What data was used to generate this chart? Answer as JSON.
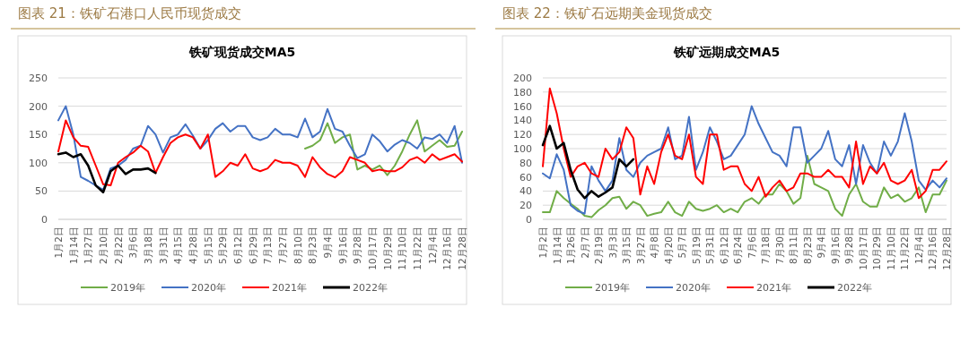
{
  "chart_data": [
    {
      "type": "line",
      "title": "图表 21：铁矿石港口人民币现货成交",
      "subtitle": "铁矿现货成交MA5",
      "grid": "y",
      "legend": "bottom",
      "ylim": [
        0,
        250
      ],
      "yticks": [
        0,
        50,
        100,
        150,
        200,
        250
      ],
      "categories": [
        "1月2日",
        null,
        "1月14日",
        null,
        "1月27日",
        null,
        "2月10日",
        null,
        "2月22日",
        null,
        "3月6日",
        null,
        "3月18日",
        null,
        "3月31日",
        null,
        "4月15日",
        null,
        "4月28日",
        null,
        "5月15日",
        null,
        "5月29日",
        null,
        "6月12日",
        null,
        "6月29日",
        null,
        "7月13日",
        null,
        "7月27日",
        null,
        "8月10日",
        null,
        "8月23日",
        null,
        "9月4日",
        null,
        "9月16日",
        null,
        "9月28日",
        null,
        "10月17日",
        null,
        "10月29日",
        null,
        "11月10日",
        null,
        "11月22日",
        null,
        "12月4日",
        null,
        "12月16日",
        null,
        "12月28日"
      ],
      "series": [
        {
          "name": "2019年",
          "color": "#70ad47",
          "values": [
            null,
            null,
            null,
            null,
            null,
            null,
            null,
            null,
            null,
            null,
            null,
            null,
            null,
            null,
            null,
            null,
            null,
            null,
            null,
            null,
            null,
            null,
            null,
            null,
            null,
            null,
            null,
            null,
            null,
            null,
            null,
            null,
            null,
            125,
            130,
            140,
            170,
            135,
            145,
            150,
            88,
            95,
            88,
            95,
            78,
            95,
            120,
            150,
            175,
            120,
            130,
            140,
            128,
            130,
            155
          ]
        },
        {
          "name": "2020年",
          "color": "#4472c4",
          "values": [
            175,
            200,
            150,
            75,
            68,
            60,
            52,
            90,
            95,
            105,
            125,
            130,
            165,
            150,
            118,
            145,
            150,
            168,
            148,
            125,
            140,
            160,
            170,
            155,
            165,
            165,
            145,
            140,
            145,
            160,
            150,
            150,
            145,
            178,
            145,
            155,
            195,
            160,
            155,
            130,
            108,
            115,
            150,
            138,
            120,
            132,
            140,
            135,
            125,
            145,
            142,
            150,
            135,
            165,
            100
          ]
        },
        {
          "name": "2021年",
          "color": "#ff0000",
          "values": [
            120,
            175,
            145,
            130,
            128,
            95,
            62,
            60,
            100,
            110,
            118,
            130,
            120,
            82,
            110,
            135,
            145,
            150,
            145,
            125,
            150,
            75,
            85,
            100,
            95,
            115,
            90,
            85,
            90,
            105,
            100,
            100,
            95,
            75,
            110,
            92,
            80,
            74,
            85,
            110,
            105,
            100,
            85,
            88,
            85,
            85,
            92,
            105,
            110,
            100,
            115,
            105,
            110,
            115,
            102
          ]
        },
        {
          "name": "2022年",
          "color": "#000000",
          "values": [
            115,
            118,
            110,
            115,
            95,
            60,
            48,
            85,
            95,
            80,
            88,
            88,
            90,
            82,
            null,
            null,
            null,
            null,
            null,
            null,
            null,
            null,
            null,
            null,
            null,
            null,
            null,
            null,
            null,
            null,
            null,
            null,
            null,
            null,
            null,
            null,
            null,
            null,
            null,
            null,
            null,
            null,
            null,
            null,
            null,
            null,
            null,
            null,
            null,
            null,
            null,
            null,
            null,
            null,
            null
          ]
        }
      ]
    },
    {
      "type": "line",
      "title": "图表 22：铁矿石远期美金现货成交",
      "subtitle": "铁矿远期成交MA5",
      "grid": "y",
      "legend": "bottom",
      "ylim": [
        0,
        200
      ],
      "yticks": [
        0,
        20,
        40,
        60,
        80,
        100,
        120,
        140,
        160,
        180,
        200
      ],
      "categories": [
        "1月2日",
        null,
        "1月14日",
        null,
        "1月26日",
        null,
        "2月7日",
        null,
        "2月19日",
        null,
        "3月3日",
        null,
        "3月15日",
        null,
        "3月27日",
        null,
        "4月8日",
        null,
        "4月20日",
        null,
        "5月7日",
        null,
        "5月19日",
        null,
        "5月31日",
        null,
        "6月12日",
        null,
        "6月24日",
        null,
        "7月6日",
        null,
        "7月18日",
        null,
        "7月30日",
        null,
        "8月11日",
        null,
        "8月23日",
        null,
        "9月4日",
        null,
        "9月16日",
        null,
        "9月28日",
        null,
        "10月17日",
        null,
        "10月29日",
        null,
        "11月10日",
        null,
        "11月22日",
        null,
        "12月4日",
        null,
        "12月16日",
        null,
        "12月28日"
      ],
      "series": [
        {
          "name": "2019年",
          "color": "#70ad47",
          "values": [
            10,
            10,
            40,
            30,
            22,
            15,
            5,
            3,
            13,
            20,
            30,
            32,
            15,
            25,
            20,
            5,
            8,
            10,
            25,
            10,
            5,
            25,
            15,
            12,
            15,
            20,
            10,
            15,
            10,
            25,
            30,
            22,
            35,
            35,
            50,
            40,
            22,
            30,
            90,
            50,
            45,
            40,
            15,
            5,
            35,
            50,
            25,
            18,
            18,
            45,
            30,
            35,
            25,
            30,
            45,
            10,
            35,
            35,
            55
          ]
        },
        {
          "name": "2020年",
          "color": "#4472c4",
          "values": [
            65,
            58,
            92,
            70,
            20,
            12,
            8,
            75,
            55,
            40,
            55,
            115,
            70,
            60,
            80,
            90,
            95,
            100,
            130,
            85,
            90,
            145,
            70,
            95,
            130,
            110,
            85,
            90,
            105,
            120,
            160,
            135,
            115,
            95,
            90,
            75,
            130,
            130,
            80,
            90,
            100,
            125,
            85,
            75,
            105,
            50,
            105,
            80,
            65,
            110,
            90,
            110,
            150,
            110,
            55,
            42,
            55,
            45,
            58
          ]
        },
        {
          "name": "2021年",
          "color": "#ff0000",
          "values": [
            75,
            185,
            150,
            100,
            60,
            75,
            80,
            65,
            60,
            100,
            85,
            95,
            130,
            115,
            35,
            75,
            50,
            95,
            120,
            90,
            85,
            120,
            60,
            50,
            120,
            120,
            70,
            75,
            75,
            50,
            40,
            60,
            32,
            45,
            55,
            40,
            45,
            65,
            65,
            60,
            60,
            70,
            60,
            60,
            45,
            110,
            50,
            75,
            65,
            80,
            55,
            50,
            55,
            70,
            30,
            40,
            70,
            70,
            82
          ]
        },
        {
          "name": "2022年",
          "color": "#000000",
          "values": [
            105,
            132,
            100,
            108,
            70,
            42,
            30,
            40,
            32,
            38,
            45,
            85,
            75,
            85,
            null,
            null,
            null,
            null,
            null,
            null,
            null,
            null,
            null,
            null,
            null,
            null,
            null,
            null,
            null,
            null,
            null,
            null,
            null,
            null,
            null,
            null,
            null,
            null,
            null,
            null,
            null,
            null,
            null,
            null,
            null,
            null,
            null,
            null,
            null,
            null,
            null,
            null,
            null,
            null,
            null,
            null,
            null,
            null,
            null
          ]
        }
      ]
    }
  ]
}
